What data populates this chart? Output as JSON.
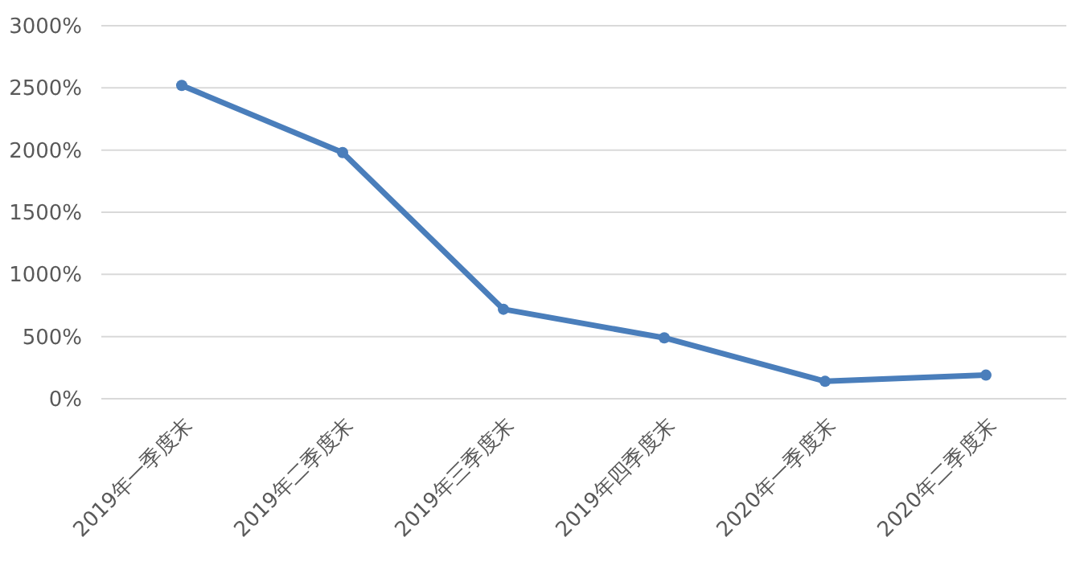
{
  "chart_data": {
    "type": "line",
    "categories": [
      "2019年一季度末",
      "2019年二季度末",
      "2019年三季度末",
      "2019年四季度末",
      "2020年一季度末",
      "2020年二季度末"
    ],
    "series": [
      {
        "color": "#4a7ebb",
        "values": [
          2520,
          1980,
          720,
          490,
          140,
          190
        ]
      }
    ],
    "ylim": [
      0,
      3000
    ],
    "yticks": [
      {
        "value": 0,
        "label": "0%"
      },
      {
        "value": 500,
        "label": "500%"
      },
      {
        "value": 1000,
        "label": "1000%"
      },
      {
        "value": 1500,
        "label": "1500%"
      },
      {
        "value": 2000,
        "label": "2000%"
      },
      {
        "value": 2500,
        "label": "2500%"
      },
      {
        "value": 3000,
        "label": "3000%"
      }
    ],
    "grid": "y",
    "marker": "circle",
    "line_style": "solid"
  }
}
